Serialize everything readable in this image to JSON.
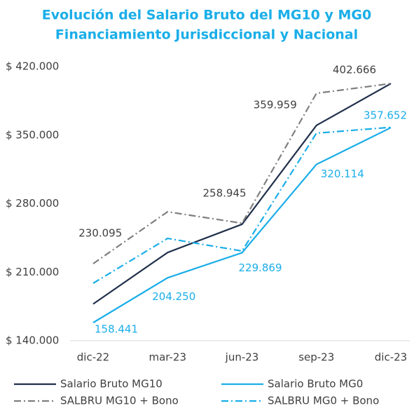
{
  "chart_data": {
    "type": "line",
    "title": [
      "Evolución del Salario Bruto del MG10 y MG0",
      "Financiamiento Jurisdiccional y Nacional"
    ],
    "categories": [
      "dic-22",
      "mar-23",
      "jun-23",
      "sep-23",
      "dic-23"
    ],
    "ylim": [
      140000,
      420000
    ],
    "yticks": [
      {
        "value": 140000,
        "label": "$ 140.000"
      },
      {
        "value": 210000,
        "label": "$ 210.000"
      },
      {
        "value": 280000,
        "label": "$ 280.000"
      },
      {
        "value": 350000,
        "label": "$ 350.000"
      },
      {
        "value": 420000,
        "label": "$ 420.000"
      }
    ],
    "series": [
      {
        "name": "Salario Bruto MG10",
        "color": "#1f2f4a",
        "dash": "solid",
        "label_color": "#404040",
        "values": [
          177500,
          230095,
          258945,
          359959,
          402666
        ],
        "value_labels": [
          null,
          "230.095",
          "258.945",
          "359.959",
          "402.666"
        ]
      },
      {
        "name": "Salario Bruto MG0",
        "color": "#1aaee8",
        "dash": "solid",
        "label_color": "#1aaee8",
        "values": [
          158441,
          204250,
          229869,
          320114,
          357652
        ],
        "value_labels": [
          "158.441",
          "204.250",
          "229.869",
          "320.114",
          "357.652"
        ]
      },
      {
        "name": "SALBRU MG10 + Bono",
        "color": "#7f7f7f",
        "dash": "dashdot",
        "values": [
          218700,
          271700,
          260000,
          392700,
          402666
        ]
      },
      {
        "name": "SALBRU MG0 + Bono",
        "color": "#1aaee8",
        "dash": "dashdot",
        "values": [
          198700,
          244500,
          231600,
          352000,
          358000
        ]
      }
    ]
  }
}
